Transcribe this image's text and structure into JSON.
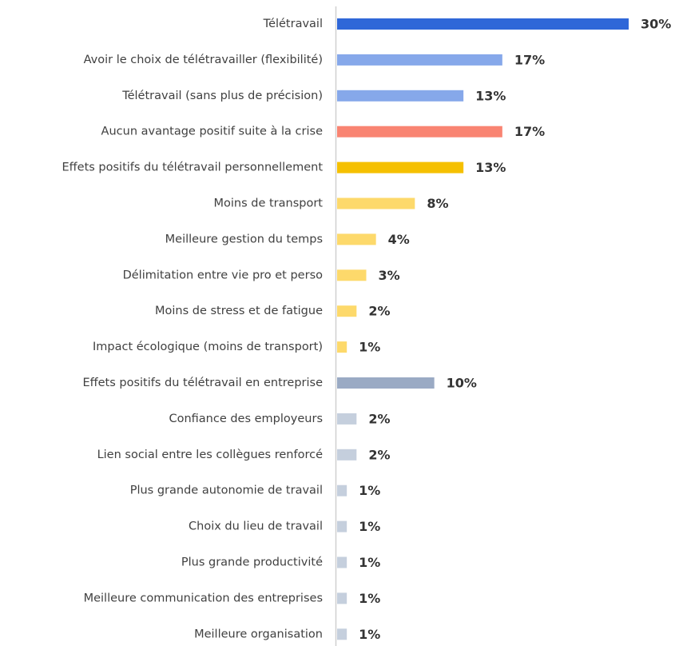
{
  "chart_data": {
    "type": "bar",
    "orientation": "horizontal",
    "categories": [
      "Télétravail",
      "Avoir le choix de télétravailler (flexibilité)",
      "Télétravail (sans plus de précision)",
      "Aucun avantage positif suite à la crise",
      "Effets positifs du télétravail personnellement",
      "Moins de transport",
      "Meilleure gestion du temps",
      "Délimitation entre vie pro et perso",
      "Moins de stress et de fatigue",
      "Impact écologique (moins de transport)",
      "Effets positifs du télétravail en entreprise",
      "Confiance des employeurs",
      "Lien social entre les collègues renforcé",
      "Plus grande autonomie de travail",
      "Choix du lieu de travail",
      "Plus grande productivité",
      "Meilleure communication des entreprises",
      "Meilleure organisation"
    ],
    "values": [
      30,
      17,
      13,
      17,
      13,
      8,
      4,
      3,
      2,
      1,
      10,
      2,
      2,
      1,
      1,
      1,
      1,
      1
    ],
    "value_labels": [
      "30%",
      "17%",
      "13%",
      "17%",
      "13%",
      "8%",
      "4%",
      "3%",
      "2%",
      "1%",
      "10%",
      "2%",
      "2%",
      "1%",
      "1%",
      "1%",
      "1%",
      "1%"
    ],
    "colors": [
      "#2f67d8",
      "#86a8ea",
      "#86a8ea",
      "#f98472",
      "#f5c000",
      "#fdd96b",
      "#fdd96b",
      "#fdd96b",
      "#fdd96b",
      "#fdd96b",
      "#9aaac4",
      "#c5cfdd",
      "#c5cfdd",
      "#c5cfdd",
      "#c5cfdd",
      "#c5cfdd",
      "#c5cfdd",
      "#c5cfdd"
    ]
  }
}
